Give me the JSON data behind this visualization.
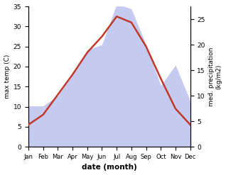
{
  "months": [
    "Jan",
    "Feb",
    "Mar",
    "Apr",
    "May",
    "Jun",
    "Jul",
    "Aug",
    "Sep",
    "Oct",
    "Nov",
    "Dec"
  ],
  "max_temp": [
    5.5,
    8.0,
    13.0,
    18.0,
    23.5,
    27.5,
    32.5,
    31.0,
    25.0,
    17.0,
    9.5,
    5.5
  ],
  "precipitation": [
    8,
    8,
    10,
    14,
    19,
    20,
    28,
    27,
    20,
    12,
    16,
    9
  ],
  "temp_color": "#c0392b",
  "precip_fill_color": "#c5caf0",
  "left_ylabel": "max temp (C)",
  "right_ylabel": "med. precipitation\n(kg/m2)",
  "xlabel": "date (month)",
  "ylim_temp": [
    0,
    35
  ],
  "ylim_precip": [
    0,
    27.5
  ],
  "yticks_temp": [
    0,
    5,
    10,
    15,
    20,
    25,
    30,
    35
  ],
  "yticks_precip": [
    0,
    5,
    10,
    15,
    20,
    25
  ],
  "bg_color": "#ffffff"
}
